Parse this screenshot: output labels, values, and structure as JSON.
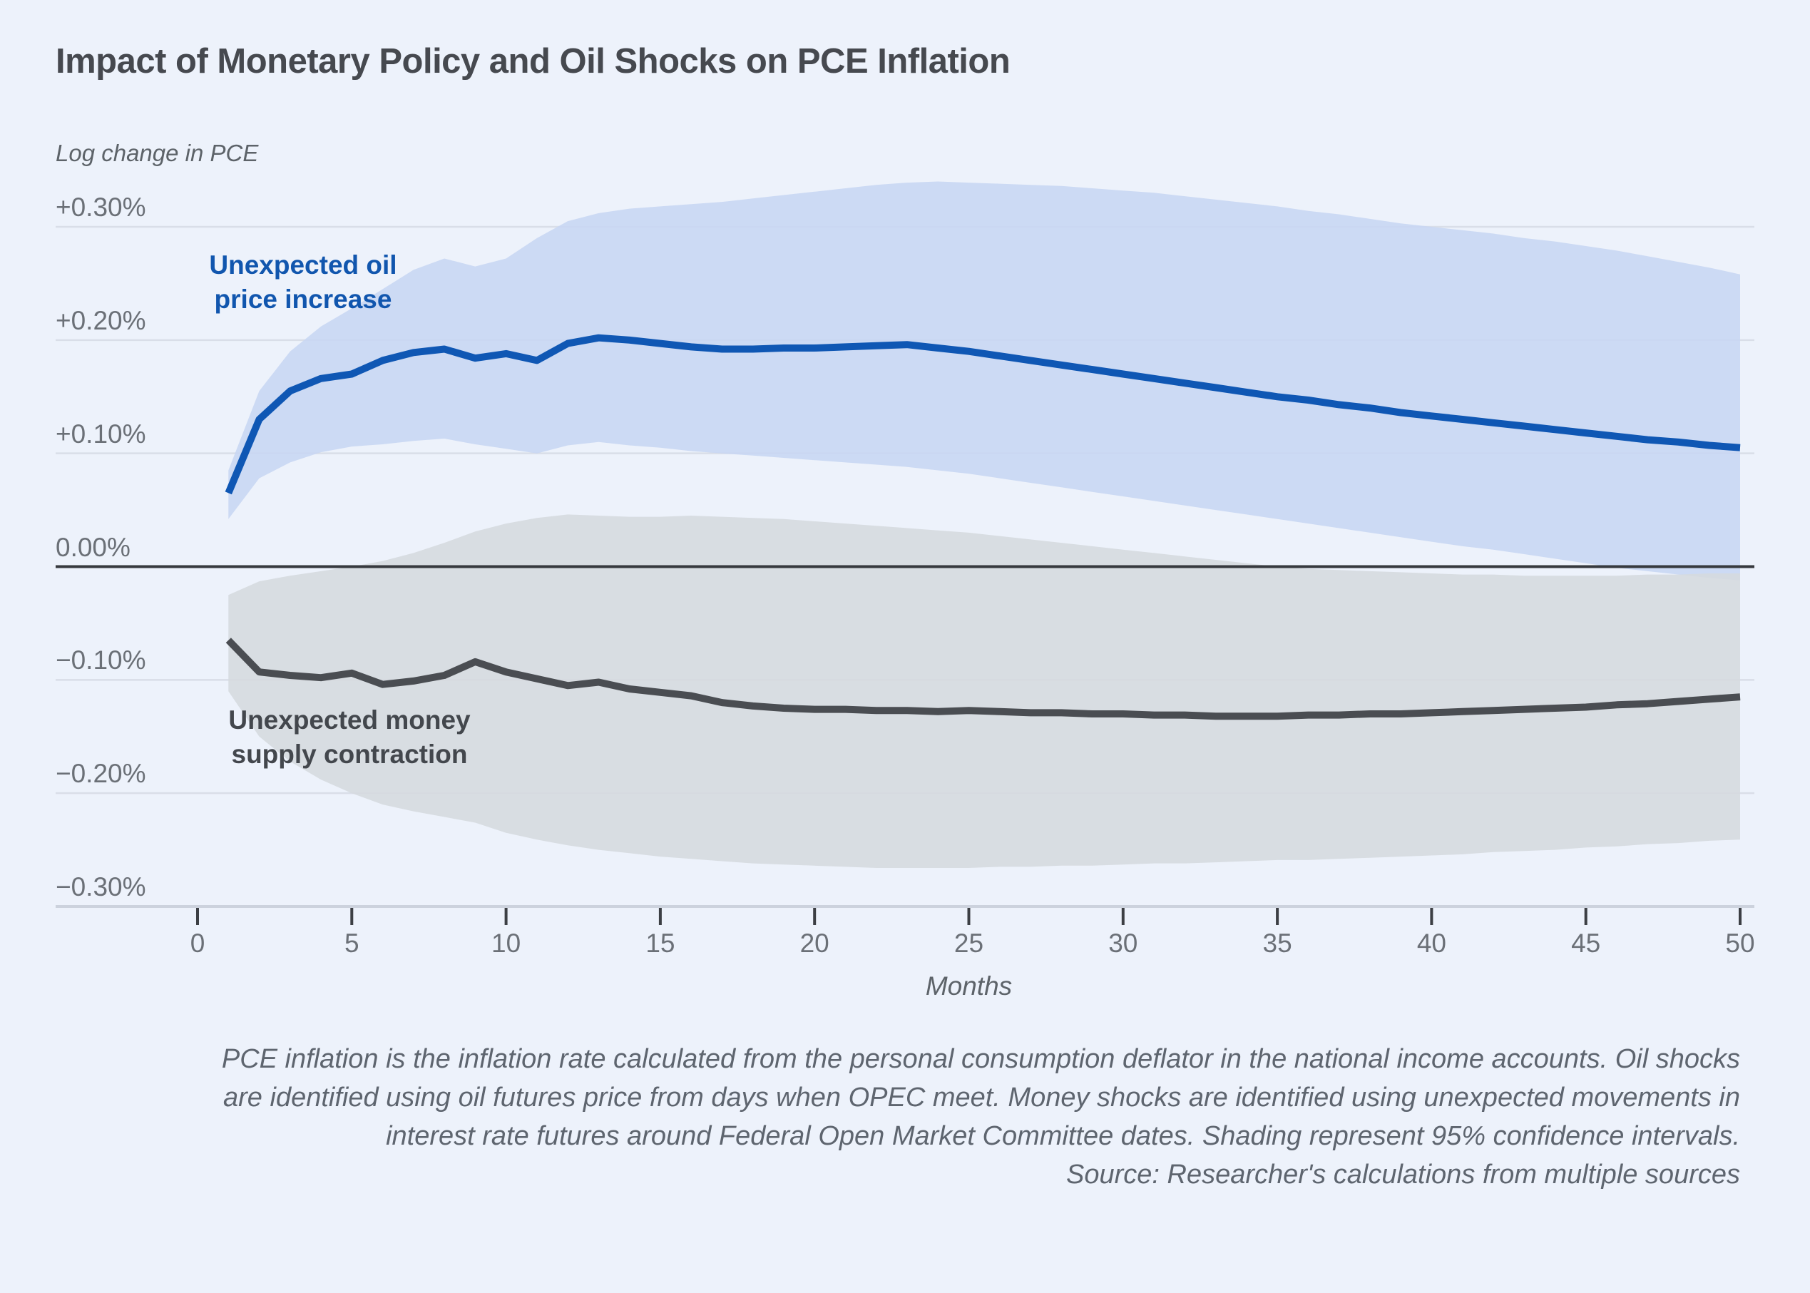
{
  "header": {
    "title": "Impact of Monetary Policy and Oil Shocks on PCE Inflation",
    "subtitle": "Log change in PCE"
  },
  "axis": {
    "y_ticks": [
      {
        "value": 0.3,
        "label": "+0.30%"
      },
      {
        "value": 0.2,
        "label": "+0.20%"
      },
      {
        "value": 0.1,
        "label": "+0.10%"
      },
      {
        "value": 0.0,
        "label": "0.00%"
      },
      {
        "value": -0.1,
        "label": "−0.10%"
      },
      {
        "value": -0.2,
        "label": "−0.20%"
      },
      {
        "value": -0.3,
        "label": "−0.30%"
      }
    ],
    "x_ticks": [
      0,
      5,
      10,
      15,
      20,
      25,
      30,
      35,
      40,
      45,
      50
    ],
    "x_label": "Months"
  },
  "annotations": {
    "oil_label": "Unexpected oil\nprice increase",
    "money_label": "Unexpected money\nsupply contraction"
  },
  "caption": {
    "lines": [
      "PCE inflation is the inflation rate calculated from the personal consumption deflator in the national income accounts. Oil shocks",
      "are identified using oil futures price from days when OPEC meet. Money shocks are identified using unexpected movements in",
      "interest rate futures around Federal Open Market Committee dates. Shading represent 95% confidence intervals.",
      "Source: Researcher's calculations from multiple sources"
    ]
  },
  "colors": {
    "background": "#edf2fb",
    "gridline": "#d9dee8",
    "zero_line": "#36393e",
    "axis_line": "#ccd2dd",
    "tick_mark": "#3c3f44",
    "oil_line": "#0f57b4",
    "oil_band": "#c7d6f3",
    "money_line": "#4a4d52",
    "money_band": "#d5d9de",
    "title_text": "#46494f",
    "tick_text": "#6b7077"
  },
  "chart_data": {
    "type": "line",
    "title": "Impact of Monetary Policy and Oil Shocks on PCE Inflation",
    "xlabel": "Months",
    "ylabel": "Log change in PCE",
    "xlim": [
      0,
      50
    ],
    "ylim": [
      -0.3,
      0.3
    ],
    "units": "percent log change",
    "grid": true,
    "note": "Shading represent 95% confidence intervals",
    "x": [
      1,
      2,
      3,
      4,
      5,
      6,
      7,
      8,
      9,
      10,
      11,
      12,
      13,
      14,
      15,
      16,
      17,
      18,
      19,
      20,
      21,
      22,
      23,
      24,
      25,
      26,
      27,
      28,
      29,
      30,
      31,
      32,
      33,
      34,
      35,
      36,
      37,
      38,
      39,
      40,
      41,
      42,
      43,
      44,
      45,
      46,
      47,
      48,
      49,
      50
    ],
    "series": [
      {
        "name": "Unexpected oil price increase",
        "values": [
          0.065,
          0.13,
          0.155,
          0.166,
          0.17,
          0.182,
          0.189,
          0.192,
          0.184,
          0.188,
          0.182,
          0.197,
          0.202,
          0.2,
          0.197,
          0.194,
          0.192,
          0.192,
          0.193,
          0.193,
          0.194,
          0.195,
          0.196,
          0.193,
          0.19,
          0.186,
          0.182,
          0.178,
          0.174,
          0.17,
          0.166,
          0.162,
          0.158,
          0.154,
          0.15,
          0.147,
          0.143,
          0.14,
          0.136,
          0.133,
          0.13,
          0.127,
          0.124,
          0.121,
          0.118,
          0.115,
          0.112,
          0.11,
          0.107,
          0.105
        ],
        "upper": [
          0.085,
          0.155,
          0.19,
          0.212,
          0.228,
          0.245,
          0.262,
          0.272,
          0.265,
          0.272,
          0.29,
          0.305,
          0.312,
          0.316,
          0.318,
          0.32,
          0.322,
          0.325,
          0.328,
          0.331,
          0.334,
          0.337,
          0.339,
          0.34,
          0.339,
          0.338,
          0.337,
          0.336,
          0.334,
          0.332,
          0.33,
          0.327,
          0.324,
          0.321,
          0.318,
          0.314,
          0.311,
          0.307,
          0.303,
          0.3,
          0.297,
          0.294,
          0.29,
          0.287,
          0.283,
          0.279,
          0.274,
          0.269,
          0.264,
          0.258
        ],
        "lower": [
          0.042,
          0.078,
          0.092,
          0.101,
          0.106,
          0.108,
          0.111,
          0.113,
          0.108,
          0.104,
          0.1,
          0.107,
          0.11,
          0.107,
          0.105,
          0.102,
          0.1,
          0.098,
          0.096,
          0.094,
          0.092,
          0.09,
          0.088,
          0.085,
          0.082,
          0.078,
          0.074,
          0.07,
          0.066,
          0.062,
          0.058,
          0.054,
          0.05,
          0.046,
          0.042,
          0.038,
          0.034,
          0.03,
          0.026,
          0.022,
          0.018,
          0.015,
          0.011,
          0.007,
          0.003,
          -0.001,
          -0.004,
          -0.007,
          -0.01,
          -0.012
        ]
      },
      {
        "name": "Unexpected money supply contraction",
        "values": [
          -0.065,
          -0.093,
          -0.096,
          -0.098,
          -0.094,
          -0.104,
          -0.101,
          -0.096,
          -0.084,
          -0.093,
          -0.099,
          -0.105,
          -0.102,
          -0.108,
          -0.111,
          -0.114,
          -0.12,
          -0.123,
          -0.125,
          -0.126,
          -0.126,
          -0.127,
          -0.127,
          -0.128,
          -0.127,
          -0.128,
          -0.129,
          -0.129,
          -0.13,
          -0.13,
          -0.131,
          -0.131,
          -0.132,
          -0.132,
          -0.132,
          -0.131,
          -0.131,
          -0.13,
          -0.13,
          -0.129,
          -0.128,
          -0.127,
          -0.126,
          -0.125,
          -0.124,
          -0.122,
          -0.121,
          -0.119,
          -0.117,
          -0.115
        ],
        "upper": [
          -0.025,
          -0.013,
          -0.008,
          -0.004,
          0.0,
          0.005,
          0.012,
          0.021,
          0.031,
          0.038,
          0.043,
          0.046,
          0.045,
          0.044,
          0.044,
          0.045,
          0.044,
          0.043,
          0.042,
          0.04,
          0.038,
          0.036,
          0.034,
          0.032,
          0.03,
          0.027,
          0.024,
          0.021,
          0.018,
          0.015,
          0.012,
          0.009,
          0.006,
          0.003,
          0.0,
          -0.002,
          -0.003,
          -0.004,
          -0.005,
          -0.006,
          -0.007,
          -0.007,
          -0.008,
          -0.008,
          -0.008,
          -0.008,
          -0.007,
          -0.007,
          -0.006,
          -0.006
        ],
        "lower": [
          -0.11,
          -0.15,
          -0.172,
          -0.188,
          -0.2,
          -0.21,
          -0.216,
          -0.221,
          -0.226,
          -0.235,
          -0.241,
          -0.246,
          -0.25,
          -0.253,
          -0.256,
          -0.258,
          -0.26,
          -0.262,
          -0.263,
          -0.264,
          -0.265,
          -0.266,
          -0.266,
          -0.266,
          -0.266,
          -0.265,
          -0.265,
          -0.264,
          -0.264,
          -0.263,
          -0.262,
          -0.262,
          -0.261,
          -0.26,
          -0.259,
          -0.259,
          -0.258,
          -0.257,
          -0.256,
          -0.255,
          -0.254,
          -0.252,
          -0.251,
          -0.25,
          -0.248,
          -0.247,
          -0.245,
          -0.244,
          -0.242,
          -0.241
        ]
      }
    ]
  }
}
